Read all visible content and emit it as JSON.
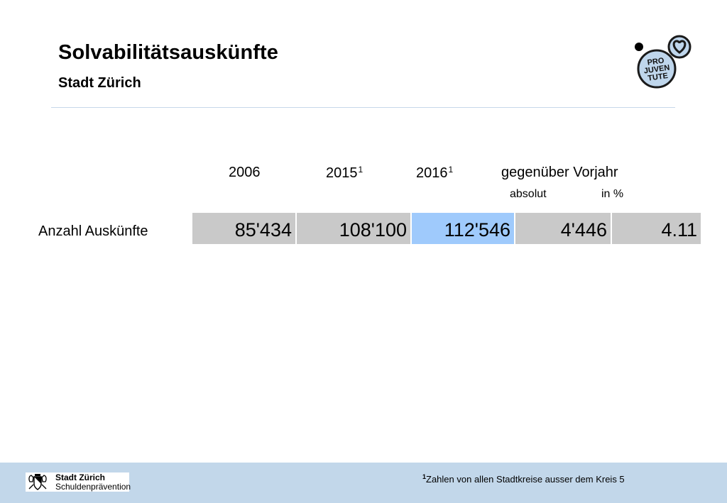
{
  "header": {
    "title": "Solvabilitätsauskünfte",
    "subtitle": "Stadt Zürich"
  },
  "logo": {
    "lines": [
      "PRO",
      "JUVEN",
      "TUTE"
    ],
    "accent": "#bfd6ec"
  },
  "table": {
    "columns": [
      {
        "year": "2006",
        "sup": ""
      },
      {
        "year": "2015",
        "sup": "1"
      },
      {
        "year": "2016",
        "sup": "1"
      }
    ],
    "change_header": "gegenüber Vorjahr",
    "change_sub": {
      "absolut": "absolut",
      "percent": "in %"
    },
    "row_label": "Anzahl Auskünfte",
    "values": [
      "85'434",
      "108'100",
      "112'546",
      "4'446",
      "4.11"
    ],
    "highlight_index": 2,
    "colors": {
      "cell": "#c9c9c9",
      "highlight": "#9fcafc"
    }
  },
  "footer": {
    "org_line1": "Stadt Zürich",
    "org_line2": "Schuldenprävention",
    "footnote_mark": "1",
    "footnote_text": "Zahlen von allen Stadtkreise ausser dem Kreis 5",
    "background": "#c2d7ea"
  }
}
